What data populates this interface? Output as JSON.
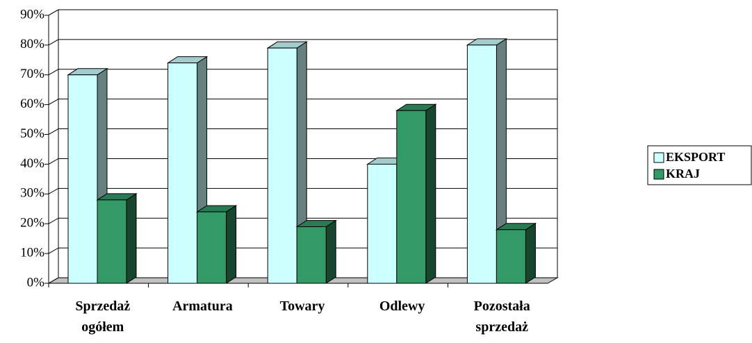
{
  "chart_data": {
    "type": "bar3d",
    "categories": [
      "Sprzedaż ogółem",
      "Armatura",
      "Towary",
      "Odlewy",
      "Pozostała sprzedaż"
    ],
    "series": [
      {
        "name": "EKSPORT",
        "color": "#ccffff",
        "values": [
          70,
          74,
          79,
          40,
          80
        ]
      },
      {
        "name": "KRAJ",
        "color": "#339966",
        "values": [
          28,
          24,
          19,
          58,
          18
        ]
      }
    ],
    "ylim": [
      0,
      90
    ],
    "yticks": [
      {
        "value": 0,
        "label": "0%"
      },
      {
        "value": 10,
        "label": "10%"
      },
      {
        "value": 20,
        "label": "20%"
      },
      {
        "value": 30,
        "label": "30%"
      },
      {
        "value": 40,
        "label": "40%"
      },
      {
        "value": 50,
        "label": "50%"
      },
      {
        "value": 60,
        "label": "60%"
      },
      {
        "value": 70,
        "label": "70%"
      },
      {
        "value": 80,
        "label": "80%"
      },
      {
        "value": 90,
        "label": "90%"
      }
    ],
    "grid": true
  }
}
